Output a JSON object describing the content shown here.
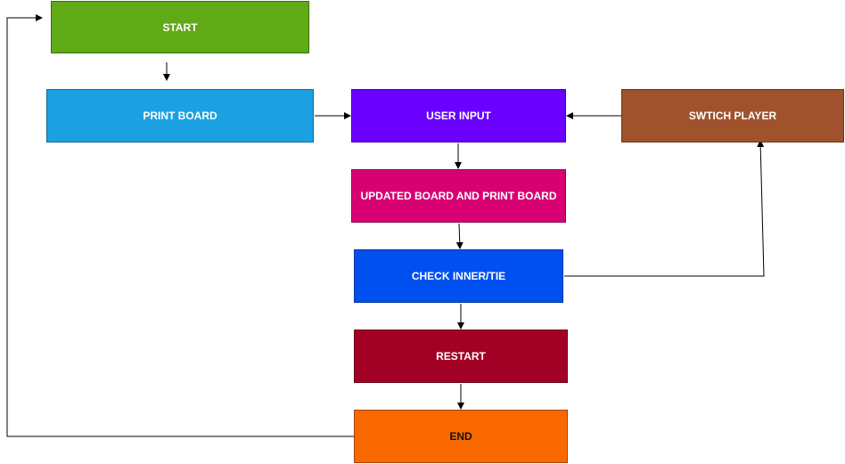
{
  "nodes": {
    "start": {
      "label": "START",
      "color": "#60a917"
    },
    "print": {
      "label": "PRINT BOARD",
      "color": "#1ba1e2"
    },
    "input": {
      "label": "USER INPUT",
      "color": "#6a00ff"
    },
    "switch": {
      "label": "SWTICH PLAYER",
      "color": "#a0522d"
    },
    "update": {
      "label": "UPDATED BOARD AND PRINT BOARD",
      "color": "#d80073"
    },
    "check": {
      "label": "CHECK INNER/TIE",
      "color": "#0050ef"
    },
    "restart": {
      "label": "RESTART",
      "color": "#a20025"
    },
    "end": {
      "label": "END",
      "color": "#fa6800"
    }
  },
  "edges": [
    {
      "from": "start",
      "to": "print"
    },
    {
      "from": "print",
      "to": "input"
    },
    {
      "from": "switch",
      "to": "input"
    },
    {
      "from": "input",
      "to": "update"
    },
    {
      "from": "update",
      "to": "check"
    },
    {
      "from": "check",
      "to": "switch"
    },
    {
      "from": "check",
      "to": "restart"
    },
    {
      "from": "restart",
      "to": "end"
    },
    {
      "from": "end",
      "to": "start"
    }
  ],
  "edge_color": "#000000"
}
